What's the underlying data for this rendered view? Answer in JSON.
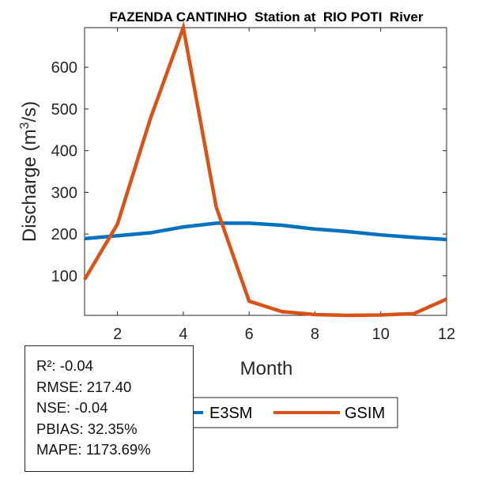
{
  "chart_data": {
    "type": "line",
    "title": "FAZENDA CANTINHO  Station at  RIO POTI  River",
    "xlabel": "Month",
    "ylabel": "Discharge (m³/s)",
    "ylabel_parts": {
      "pre": "Discharge (m",
      "sup": "3",
      "post": "/s)"
    },
    "x": [
      1,
      2,
      3,
      4,
      5,
      6,
      7,
      8,
      9,
      10,
      11,
      12
    ],
    "xlim": [
      1,
      12
    ],
    "ylim": [
      5,
      695
    ],
    "xticks": [
      2,
      4,
      6,
      8,
      10,
      12
    ],
    "yticks": [
      100,
      200,
      300,
      400,
      500,
      600
    ],
    "grid": false,
    "series": [
      {
        "name": "E3SM",
        "color": "#0072BD",
        "values": [
          189,
          196,
          203,
          217,
          226,
          226,
          221,
          212,
          206,
          198,
          192,
          187
        ]
      },
      {
        "name": "GSIM",
        "color": "#D95319",
        "values": [
          91,
          224,
          477,
          695,
          265,
          39,
          14,
          7,
          5,
          6,
          9,
          44
        ]
      }
    ],
    "legend_placement": "bottom-outside",
    "stats": [
      "R²: -0.04",
      "RMSE: 217.40",
      "NSE: -0.04",
      "PBIAS: 32.35%",
      "MAPE: 1173.69%"
    ]
  }
}
